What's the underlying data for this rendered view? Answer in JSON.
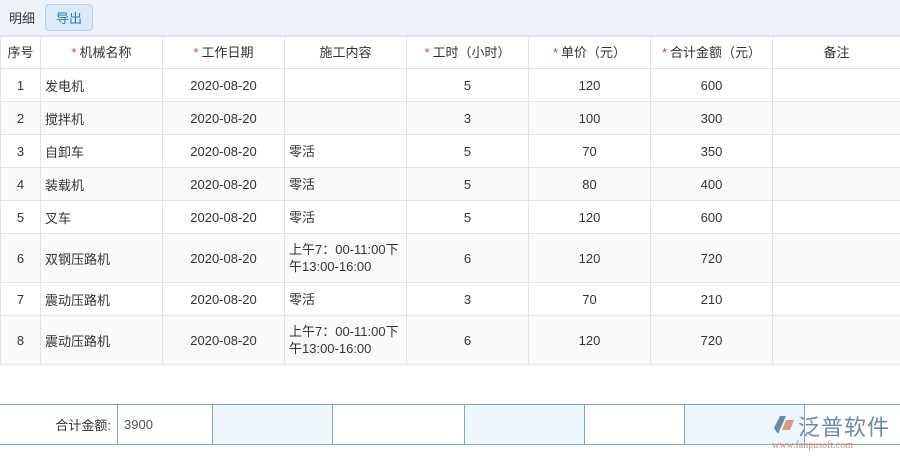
{
  "toolbar": {
    "title": "明细",
    "export_label": "导出"
  },
  "table": {
    "headers": [
      {
        "label": "序号",
        "required": false
      },
      {
        "label": "机械名称",
        "required": true
      },
      {
        "label": "工作日期",
        "required": true
      },
      {
        "label": "施工内容",
        "required": false
      },
      {
        "label": "工时（小时）",
        "required": true
      },
      {
        "label": "单价（元）",
        "required": true
      },
      {
        "label": "合计金额（元）",
        "required": true
      },
      {
        "label": "备注",
        "required": false
      }
    ],
    "rows": [
      [
        "1",
        "发电机",
        "2020-08-20",
        "",
        "5",
        "120",
        "600",
        ""
      ],
      [
        "2",
        "搅拌机",
        "2020-08-20",
        "",
        "3",
        "100",
        "300",
        ""
      ],
      [
        "3",
        "自卸车",
        "2020-08-20",
        "零活",
        "5",
        "70",
        "350",
        ""
      ],
      [
        "4",
        "装载机",
        "2020-08-20",
        "零活",
        "5",
        "80",
        "400",
        ""
      ],
      [
        "5",
        "叉车",
        "2020-08-20",
        "零活",
        "5",
        "120",
        "600",
        ""
      ],
      [
        "6",
        "双钢压路机",
        "2020-08-20",
        "上午7：00-11:00下午13:00-16:00",
        "6",
        "120",
        "720",
        ""
      ],
      [
        "7",
        "震动压路机",
        "2020-08-20",
        "零活",
        "3",
        "70",
        "210",
        ""
      ],
      [
        "8",
        "震动压路机",
        "2020-08-20",
        "上午7：00-11:00下午13:00-16:00",
        "6",
        "120",
        "720",
        ""
      ]
    ]
  },
  "footer": {
    "total_label": "合计金额:",
    "total_value": "3900"
  },
  "watermark": {
    "brand": "泛普软件",
    "url": "www.fanpusoft.com"
  }
}
